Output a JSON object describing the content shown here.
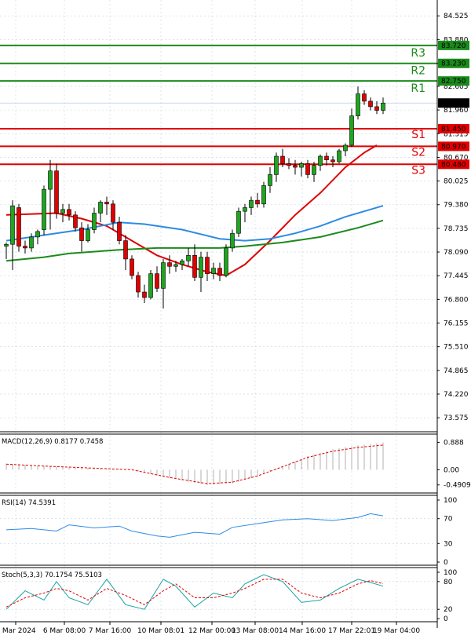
{
  "chart_data": {
    "type": "candlestick",
    "price_axis": {
      "ylim": [
        73.3,
        84.85
      ],
      "ticks": [
        "84.525",
        "83.880",
        "83.230",
        "82.605",
        "81.960",
        "81.315",
        "80.670",
        "80.025",
        "79.380",
        "78.735",
        "78.090",
        "77.445",
        "76.800",
        "76.155",
        "75.510",
        "74.865",
        "74.220",
        "73.575"
      ],
      "grid": true
    },
    "x_labels": [
      "5 Mar 2024",
      "6 Mar 08:00",
      "7 Mar 16:00",
      "10 Mar 08:01",
      "12 Mar 00:00",
      "13 Mar 08:00",
      "14 Mar 16:00",
      "17 Mar 22:01",
      "19 Mar 04:00"
    ],
    "current_price": "82.150",
    "levels": [
      {
        "name": "R3",
        "value": 83.72,
        "label": "83.720",
        "type": "resistance",
        "color": "#1a8a1a"
      },
      {
        "name": "R2",
        "value": 83.23,
        "label": "83.230",
        "type": "resistance",
        "color": "#1a8a1a"
      },
      {
        "name": "R1",
        "value": 82.75,
        "label": "82.750",
        "type": "resistance",
        "color": "#1a8a1a"
      },
      {
        "name": "S1",
        "value": 81.45,
        "label": "81.450",
        "type": "support",
        "color": "#e00000"
      },
      {
        "name": "S2",
        "value": 80.97,
        "label": "80.970",
        "type": "support",
        "color": "#e00000"
      },
      {
        "name": "S3",
        "value": 80.48,
        "label": "80.480",
        "type": "support",
        "color": "#e00000"
      }
    ],
    "candles": [
      [
        78.25,
        78.35,
        77.9,
        78.3
      ],
      [
        78.3,
        79.5,
        77.6,
        79.35
      ],
      [
        79.3,
        79.4,
        78.1,
        78.25
      ],
      [
        78.25,
        78.4,
        78.05,
        78.2
      ],
      [
        78.2,
        78.6,
        78.1,
        78.5
      ],
      [
        78.5,
        78.7,
        78.3,
        78.65
      ],
      [
        78.7,
        79.9,
        78.55,
        79.8
      ],
      [
        79.8,
        80.6,
        78.7,
        80.3
      ],
      [
        80.3,
        80.5,
        79.0,
        79.15
      ],
      [
        79.15,
        79.4,
        78.9,
        79.25
      ],
      [
        79.25,
        79.4,
        78.95,
        79.1
      ],
      [
        79.1,
        79.2,
        78.65,
        78.75
      ],
      [
        78.75,
        78.9,
        78.1,
        78.4
      ],
      [
        78.4,
        78.85,
        78.35,
        78.7
      ],
      [
        78.7,
        79.3,
        78.6,
        79.15
      ],
      [
        79.15,
        79.5,
        78.9,
        79.45
      ],
      [
        79.45,
        79.6,
        79.1,
        79.4
      ],
      [
        79.4,
        79.5,
        78.7,
        78.9
      ],
      [
        78.9,
        79.05,
        78.3,
        78.4
      ],
      [
        78.4,
        78.55,
        77.6,
        77.9
      ],
      [
        77.9,
        78.0,
        77.35,
        77.45
      ],
      [
        77.45,
        77.55,
        76.85,
        77.0
      ],
      [
        77.0,
        77.2,
        76.7,
        76.85
      ],
      [
        76.85,
        77.6,
        76.8,
        77.5
      ],
      [
        77.5,
        77.7,
        77.0,
        77.1
      ],
      [
        77.1,
        77.9,
        76.55,
        77.8
      ],
      [
        77.8,
        78.0,
        77.5,
        77.7
      ],
      [
        77.7,
        77.85,
        77.55,
        77.75
      ],
      [
        77.75,
        77.9,
        77.6,
        77.85
      ],
      [
        77.85,
        78.2,
        77.7,
        78.0
      ],
      [
        78.0,
        78.3,
        77.3,
        77.4
      ],
      [
        77.4,
        78.1,
        77.0,
        77.95
      ],
      [
        77.95,
        78.1,
        77.3,
        77.5
      ],
      [
        77.5,
        77.8,
        77.35,
        77.65
      ],
      [
        77.65,
        77.8,
        77.3,
        77.45
      ],
      [
        77.45,
        78.3,
        77.4,
        78.2
      ],
      [
        78.2,
        78.7,
        78.1,
        78.6
      ],
      [
        78.6,
        79.3,
        78.5,
        79.2
      ],
      [
        79.2,
        79.4,
        78.9,
        79.3
      ],
      [
        79.3,
        79.6,
        79.1,
        79.5
      ],
      [
        79.5,
        79.7,
        79.3,
        79.4
      ],
      [
        79.4,
        80.0,
        79.3,
        79.9
      ],
      [
        79.9,
        80.4,
        79.7,
        80.2
      ],
      [
        80.2,
        80.8,
        80.0,
        80.7
      ],
      [
        80.7,
        80.9,
        80.4,
        80.5
      ],
      [
        80.5,
        80.65,
        80.35,
        80.45
      ],
      [
        80.45,
        80.6,
        80.2,
        80.4
      ],
      [
        80.4,
        80.55,
        80.15,
        80.5
      ],
      [
        80.5,
        80.6,
        80.1,
        80.2
      ],
      [
        80.2,
        80.55,
        80.0,
        80.45
      ],
      [
        80.45,
        80.75,
        80.3,
        80.7
      ],
      [
        80.7,
        80.8,
        80.45,
        80.6
      ],
      [
        80.6,
        80.7,
        80.4,
        80.55
      ],
      [
        80.55,
        80.9,
        80.5,
        80.85
      ],
      [
        80.85,
        81.05,
        80.7,
        81.0
      ],
      [
        81.0,
        82.0,
        80.95,
        81.8
      ],
      [
        81.8,
        82.6,
        81.7,
        82.4
      ],
      [
        82.4,
        82.5,
        82.1,
        82.2
      ],
      [
        82.2,
        82.3,
        81.95,
        82.05
      ],
      [
        82.05,
        82.2,
        81.85,
        81.95
      ],
      [
        81.95,
        82.3,
        81.85,
        82.15
      ]
    ],
    "moving_averages": [
      {
        "color": "#e00000",
        "points": [
          [
            0,
            79.1
          ],
          [
            8,
            79.15
          ],
          [
            12,
            79.0
          ],
          [
            16,
            78.8
          ],
          [
            20,
            78.4
          ],
          [
            24,
            78.0
          ],
          [
            28,
            77.75
          ],
          [
            32,
            77.55
          ],
          [
            35,
            77.45
          ],
          [
            38,
            77.75
          ],
          [
            42,
            78.4
          ],
          [
            46,
            79.1
          ],
          [
            50,
            79.7
          ],
          [
            54,
            80.4
          ],
          [
            57,
            80.8
          ],
          [
            59,
            81.0
          ]
        ]
      },
      {
        "color": "#2d8be6",
        "points": [
          [
            0,
            78.4
          ],
          [
            6,
            78.55
          ],
          [
            12,
            78.7
          ],
          [
            18,
            78.9
          ],
          [
            22,
            78.85
          ],
          [
            28,
            78.7
          ],
          [
            34,
            78.45
          ],
          [
            38,
            78.4
          ],
          [
            42,
            78.45
          ],
          [
            46,
            78.6
          ],
          [
            50,
            78.8
          ],
          [
            54,
            79.05
          ],
          [
            58,
            79.25
          ],
          [
            60,
            79.35
          ]
        ]
      },
      {
        "color": "#1c8a1c",
        "points": [
          [
            0,
            77.85
          ],
          [
            6,
            77.95
          ],
          [
            10,
            78.05
          ],
          [
            18,
            78.15
          ],
          [
            24,
            78.2
          ],
          [
            34,
            78.2
          ],
          [
            38,
            78.25
          ],
          [
            44,
            78.35
          ],
          [
            50,
            78.5
          ],
          [
            56,
            78.75
          ],
          [
            60,
            78.95
          ]
        ]
      }
    ],
    "macd": {
      "label": "MACD(12,26,9) 0.8177 0.7458",
      "ticks": [
        "0.888",
        "0.00",
        "-0.4909"
      ],
      "ylim": [
        -0.65,
        1.0
      ],
      "signal": [
        [
          0,
          0.18
        ],
        [
          6,
          0.12
        ],
        [
          14,
          0.05
        ],
        [
          20,
          0.0
        ],
        [
          26,
          -0.25
        ],
        [
          32,
          -0.45
        ],
        [
          36,
          -0.4
        ],
        [
          40,
          -0.2
        ],
        [
          44,
          0.1
        ],
        [
          48,
          0.4
        ],
        [
          52,
          0.6
        ],
        [
          56,
          0.72
        ],
        [
          60,
          0.8
        ]
      ]
    },
    "rsi": {
      "label": "RSI(14) 74.5391",
      "ticks": [
        "100",
        "70",
        "30",
        "0"
      ],
      "ylim": [
        0,
        100
      ],
      "points": [
        [
          0,
          52
        ],
        [
          4,
          54
        ],
        [
          8,
          50
        ],
        [
          10,
          60
        ],
        [
          14,
          55
        ],
        [
          18,
          58
        ],
        [
          20,
          50
        ],
        [
          24,
          42
        ],
        [
          26,
          40
        ],
        [
          30,
          48
        ],
        [
          34,
          45
        ],
        [
          36,
          56
        ],
        [
          40,
          62
        ],
        [
          44,
          68
        ],
        [
          48,
          70
        ],
        [
          52,
          67
        ],
        [
          56,
          72
        ],
        [
          58,
          78
        ],
        [
          60,
          74.5
        ]
      ]
    },
    "stoch": {
      "label": "Stoch(5,3,3) 70.1754 75.5103",
      "ticks": [
        "100",
        "80",
        "20",
        "0"
      ],
      "ylim": [
        0,
        100
      ],
      "k": [
        [
          0,
          20
        ],
        [
          3,
          60
        ],
        [
          6,
          40
        ],
        [
          8,
          80
        ],
        [
          10,
          45
        ],
        [
          13,
          30
        ],
        [
          16,
          85
        ],
        [
          19,
          30
        ],
        [
          22,
          20
        ],
        [
          25,
          85
        ],
        [
          27,
          70
        ],
        [
          30,
          25
        ],
        [
          33,
          55
        ],
        [
          36,
          45
        ],
        [
          38,
          75
        ],
        [
          41,
          95
        ],
        [
          44,
          80
        ],
        [
          47,
          35
        ],
        [
          50,
          40
        ],
        [
          53,
          65
        ],
        [
          56,
          85
        ],
        [
          58,
          78
        ],
        [
          60,
          70
        ]
      ],
      "d": [
        [
          0,
          25
        ],
        [
          3,
          45
        ],
        [
          6,
          55
        ],
        [
          8,
          65
        ],
        [
          10,
          60
        ],
        [
          13,
          40
        ],
        [
          16,
          65
        ],
        [
          19,
          50
        ],
        [
          22,
          30
        ],
        [
          25,
          60
        ],
        [
          27,
          75
        ],
        [
          30,
          45
        ],
        [
          33,
          45
        ],
        [
          36,
          55
        ],
        [
          38,
          65
        ],
        [
          41,
          85
        ],
        [
          44,
          85
        ],
        [
          47,
          55
        ],
        [
          50,
          45
        ],
        [
          53,
          55
        ],
        [
          56,
          75
        ],
        [
          58,
          82
        ],
        [
          60,
          75.5
        ]
      ]
    }
  }
}
